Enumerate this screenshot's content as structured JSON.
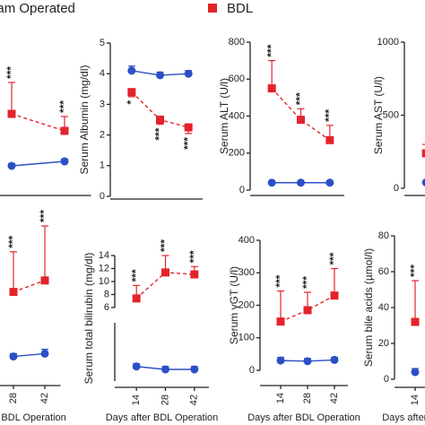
{
  "chart_data": [
    {
      "type": "line",
      "x": [
        28,
        42
      ],
      "xlim": [
        7,
        49
      ],
      "ylim": [
        0,
        1000
      ],
      "series": [
        {
          "name": "Sham Operated",
          "color": "#2b4fc7",
          "marker": "circle",
          "line": "solid",
          "values": [
            157,
            186
          ],
          "errors": [
            15,
            15
          ]
        },
        {
          "name": "BDL",
          "color": "#e3232c",
          "marker": "square",
          "line": "dashed",
          "values": [
            494,
            384
          ],
          "errors": [
            204,
            93
          ],
          "annotations": [
            "***",
            "***"
          ]
        }
      ]
    },
    {
      "type": "line",
      "x": [
        14,
        28,
        42
      ],
      "xlim": [
        7,
        49
      ],
      "ylim": [
        0,
        5
      ],
      "yticks": [
        0,
        1,
        2,
        3,
        4,
        5
      ],
      "y_label": "Serum Albumin (mg/dl)",
      "series": [
        {
          "name": "Sham Operated",
          "color": "#2b4fc7",
          "marker": "circle",
          "line": "solid",
          "values": [
            4.1,
            3.95,
            4.0
          ],
          "errors": [
            0.15,
            0.1,
            0.1
          ]
        },
        {
          "name": "BDL",
          "color": "#e3232c",
          "marker": "square",
          "line": "dashed",
          "values": [
            3.4,
            2.5,
            2.25
          ],
          "errors": [
            0.15,
            0.15,
            0.2
          ],
          "annotations": [
            "*",
            "***",
            "***"
          ]
        }
      ]
    },
    {
      "type": "line",
      "x": [
        14,
        28,
        42
      ],
      "xlim": [
        7,
        49
      ],
      "ylim": [
        0,
        800
      ],
      "yticks": [
        0,
        200,
        400,
        600,
        800
      ],
      "y_label": "Serum ALT (U/l)",
      "series": [
        {
          "name": "Sham Operated",
          "color": "#2b4fc7",
          "marker": "circle",
          "line": "solid",
          "values": [
            40,
            40,
            40
          ],
          "errors": [
            5,
            5,
            5
          ]
        },
        {
          "name": "BDL",
          "color": "#e3232c",
          "marker": "square",
          "line": "dashed",
          "values": [
            550,
            380,
            270
          ],
          "errors": [
            150,
            60,
            80
          ],
          "annotations": [
            "***",
            "***",
            "***"
          ]
        }
      ]
    },
    {
      "type": "line",
      "x": [
        14
      ],
      "xlim": [
        7,
        49
      ],
      "ylim": [
        0,
        1000
      ],
      "yticks": [
        0,
        500,
        1000
      ],
      "y_label": "Serum AST (U/l)",
      "series": [
        {
          "name": "Sham Operated",
          "color": "#2b4fc7",
          "marker": "circle",
          "line": "solid",
          "values": [
            40
          ],
          "errors": [
            5
          ]
        },
        {
          "name": "BDL",
          "color": "#e3232c",
          "marker": "square",
          "line": "dashed",
          "values": [
            240
          ],
          "errors": [
            60
          ]
        }
      ]
    },
    {
      "type": "line",
      "x": [
        28,
        42
      ],
      "xlim": [
        7,
        49
      ],
      "xticks": [
        28,
        42
      ],
      "ylim": [
        0,
        100
      ],
      "x_label": "Days after BDL Operation",
      "series": [
        {
          "name": "Sham Operated",
          "color": "#2b4fc7",
          "marker": "circle",
          "line": "solid",
          "values": [
            14,
            16
          ],
          "errors": [
            2,
            3
          ]
        },
        {
          "name": "BDL",
          "color": "#e3232c",
          "marker": "square",
          "line": "dashed",
          "values": [
            59,
            67
          ],
          "errors": [
            28,
            38
          ],
          "annotations": [
            "***",
            "***"
          ]
        }
      ]
    },
    {
      "type": "line",
      "x": [
        14,
        28,
        42
      ],
      "xlim": [
        7,
        49
      ],
      "xticks": [
        14,
        28,
        42
      ],
      "ylim": [
        6,
        14
      ],
      "yticks": [
        6,
        8,
        10,
        12,
        14
      ],
      "broken_ylim": [
        0,
        1
      ],
      "y_label": "Serum total bilirubin (mg/dl)",
      "x_label": "Days after BDL Operation",
      "series": [
        {
          "name": "Sham Operated",
          "color": "#2b4fc7",
          "marker": "circle",
          "line": "solid",
          "axis": "lower",
          "values": [
            0.25,
            0.2,
            0.2
          ],
          "errors": [
            0.05,
            0.05,
            0.05
          ]
        },
        {
          "name": "BDL",
          "color": "#e3232c",
          "marker": "square",
          "line": "dashed",
          "values": [
            7.4,
            11.4,
            11.1
          ],
          "errors": [
            2.0,
            2.6,
            1.2
          ],
          "annotations": [
            "***",
            "***",
            "***"
          ]
        }
      ]
    },
    {
      "type": "line",
      "x": [
        14,
        28,
        42
      ],
      "xlim": [
        7,
        49
      ],
      "xticks": [
        14,
        28,
        42
      ],
      "ylim": [
        0,
        400
      ],
      "yticks": [
        0,
        100,
        200,
        300,
        400
      ],
      "y_label": "Serum γGT (U/l)",
      "x_label": "Days after BDL Operation",
      "series": [
        {
          "name": "Sham Operated",
          "color": "#2b4fc7",
          "marker": "circle",
          "line": "solid",
          "values": [
            30,
            28,
            32
          ],
          "errors": [
            10,
            8,
            8
          ]
        },
        {
          "name": "BDL",
          "color": "#e3232c",
          "marker": "square",
          "line": "dashed",
          "values": [
            150,
            185,
            230
          ],
          "errors": [
            94,
            55,
            83
          ],
          "annotations": [
            "***",
            "***",
            "***"
          ]
        }
      ]
    },
    {
      "type": "line",
      "x": [
        14
      ],
      "xlim": [
        7,
        49
      ],
      "xticks": [
        14
      ],
      "ylim": [
        0,
        80
      ],
      "yticks": [
        0,
        20,
        40,
        60,
        80
      ],
      "y_label": "Serum bile acids (µmol/l)",
      "x_label": "Days after BDL Operation",
      "series": [
        {
          "name": "Sham Operated",
          "color": "#2b4fc7",
          "marker": "circle",
          "line": "solid",
          "values": [
            4
          ],
          "errors": [
            2
          ]
        },
        {
          "name": "BDL",
          "color": "#e3232c",
          "marker": "square",
          "line": "dashed",
          "values": [
            32
          ],
          "errors": [
            23
          ],
          "annotations": [
            "***"
          ]
        }
      ]
    }
  ]
}
